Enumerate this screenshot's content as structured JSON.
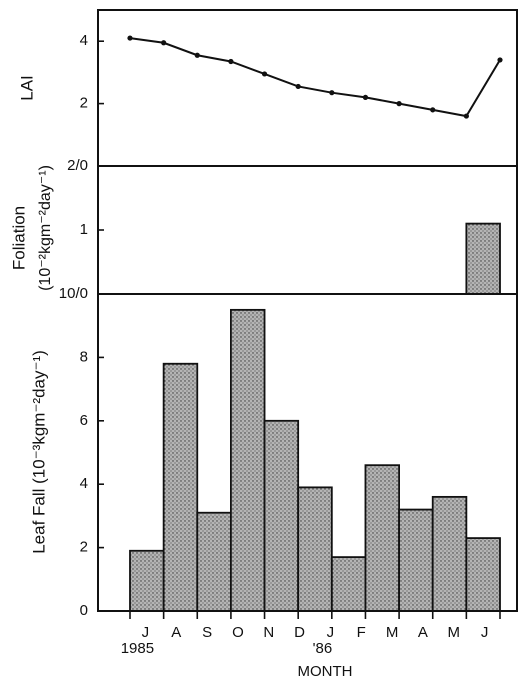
{
  "chart_data": [
    {
      "type": "line",
      "ylabel": "LAI",
      "values": [
        4.1,
        3.95,
        3.55,
        3.35,
        2.95,
        2.55,
        2.35,
        2.2,
        2.0,
        1.8,
        1.6,
        3.4
      ],
      "color": "#111111",
      "ylim": [
        0,
        5
      ],
      "yticks": [
        2,
        4
      ]
    },
    {
      "type": "bar",
      "ylabel": "Foliation",
      "ylabel_units": "(10⁻²kgm⁻²day⁻¹)",
      "values": [
        0,
        0,
        0,
        0,
        0,
        0,
        0,
        0,
        0,
        0,
        1.1,
        null
      ],
      "color": "#b4b4b4",
      "ylim": [
        0,
        2
      ],
      "yticks": [
        1,
        {
          "value": 2,
          "label": "2/0"
        }
      ]
    },
    {
      "type": "bar",
      "ylabel": "Leaf Fall (10⁻³kgm⁻²day⁻¹)",
      "xlabel": "MONTH",
      "categories": [
        "J",
        "A",
        "S",
        "O",
        "N",
        "D",
        "J",
        "F",
        "M",
        "A",
        "M",
        "J"
      ],
      "annotations": [
        "1985",
        "'86"
      ],
      "values": [
        1.9,
        7.8,
        3.1,
        9.5,
        6.0,
        3.9,
        1.7,
        4.6,
        3.2,
        3.6,
        2.3,
        null
      ],
      "color": "#b4b4b4",
      "ylim": [
        0,
        10
      ],
      "yticks": [
        0,
        2,
        4,
        6,
        8,
        {
          "value": 10,
          "label": "10/0"
        }
      ]
    }
  ]
}
